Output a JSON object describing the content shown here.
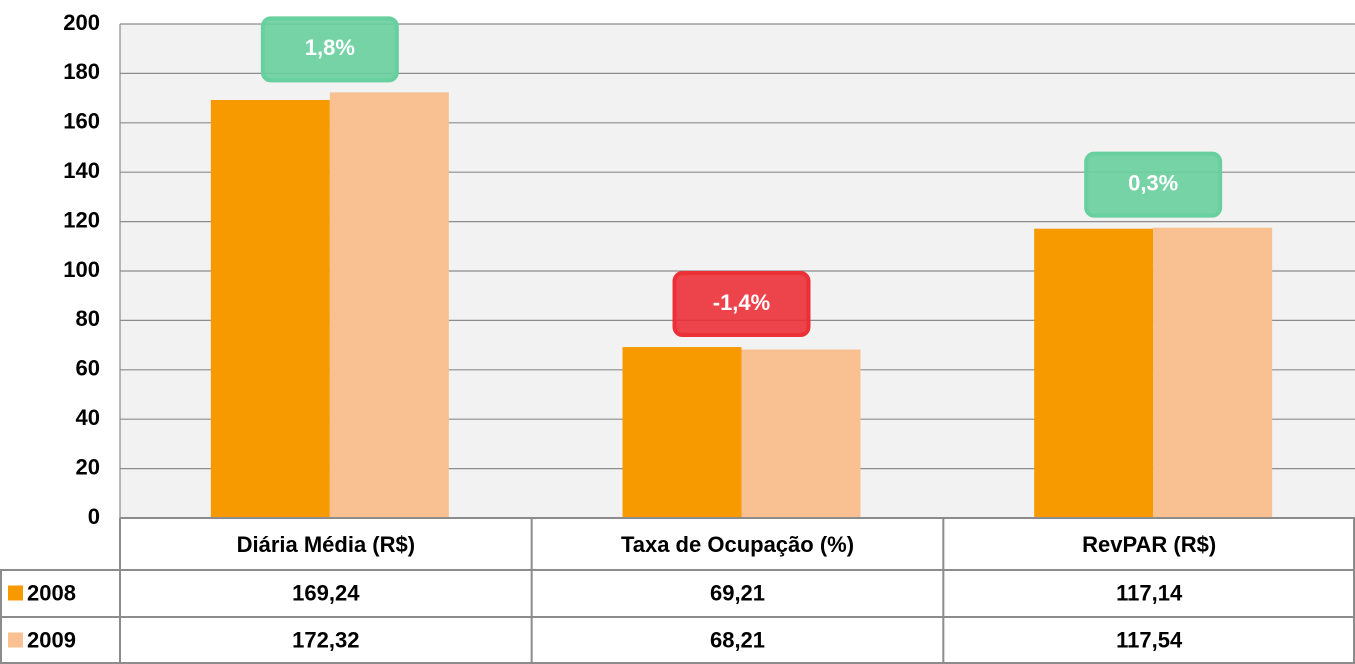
{
  "chart_data": {
    "type": "bar",
    "categories": [
      "Diária Média (R$)",
      "Taxa de Ocupação (%)",
      "RevPAR (R$)"
    ],
    "series": [
      {
        "name": "2008",
        "color": "#f79a00",
        "values": [
          169.24,
          69.21,
          117.14
        ],
        "value_labels": [
          "169,24",
          "69,21",
          "117,14"
        ]
      },
      {
        "name": "2009",
        "color": "#f9c092",
        "values": [
          172.32,
          68.21,
          117.54
        ],
        "value_labels": [
          "172,32",
          "68,21",
          "117,54"
        ]
      }
    ],
    "annotations": [
      "1,8%",
      "-1,4%",
      "0,3%"
    ],
    "annotation_colors": [
      "#6ddaa6",
      "#f8333b",
      "#6ddaa6"
    ],
    "ylim": [
      0,
      200
    ],
    "yticks": [
      0,
      20,
      40,
      60,
      80,
      100,
      120,
      140,
      160,
      180,
      200
    ],
    "grid": true
  }
}
